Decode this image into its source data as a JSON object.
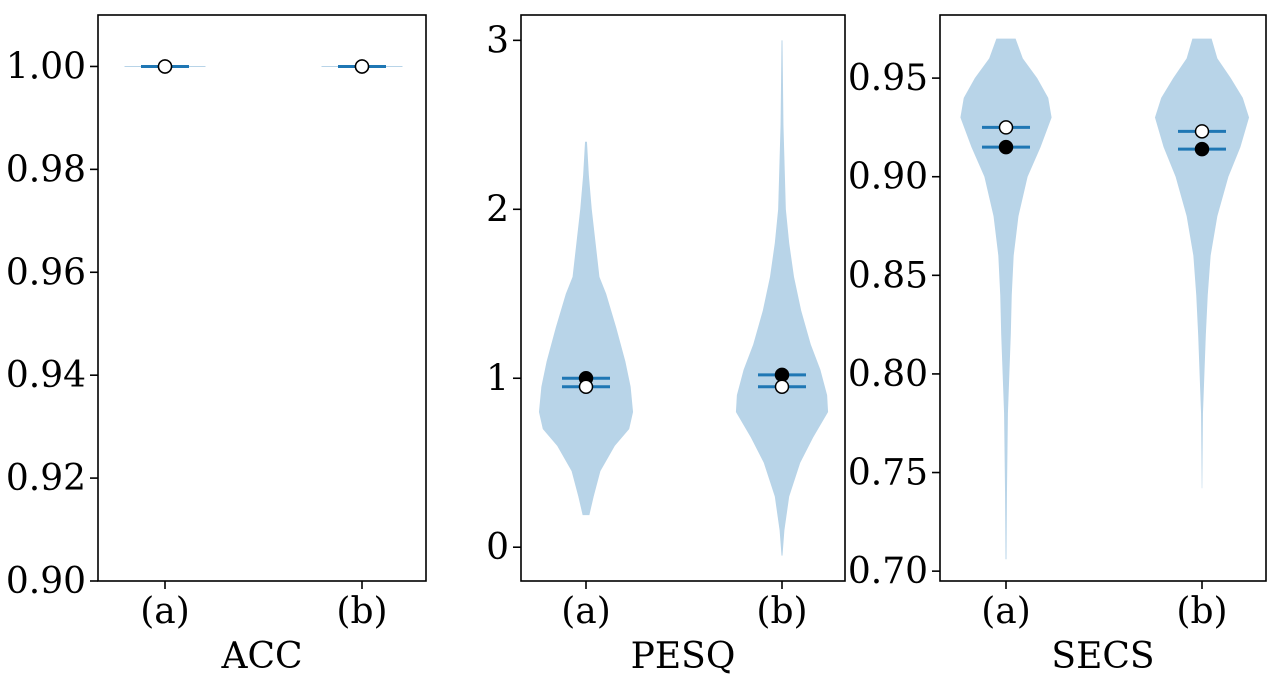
{
  "chart_data": [
    {
      "type": "violin",
      "xlabel": "ACC",
      "categories": [
        "(a)",
        "(b)"
      ],
      "ylim": [
        0.9,
        1.01
      ],
      "yticks": [
        0.9,
        0.92,
        0.94,
        0.96,
        0.98,
        1.0
      ],
      "ytick_labels": [
        "0.90",
        "0.92",
        "0.94",
        "0.96",
        "0.98",
        "1.00"
      ],
      "violins": [
        {
          "category": "(a)",
          "profile": [
            [
              1.0,
              0.45
            ]
          ]
        },
        {
          "category": "(b)",
          "profile": [
            [
              1.0,
              0.45
            ]
          ]
        }
      ],
      "mean": [
        1.0,
        1.0
      ],
      "median": [
        1.0,
        1.0
      ]
    },
    {
      "type": "violin",
      "xlabel": "PESQ",
      "categories": [
        "(a)",
        "(b)"
      ],
      "ylim": [
        -0.2,
        3.15
      ],
      "yticks": [
        0,
        1,
        2,
        3
      ],
      "ytick_labels": [
        "0",
        "1",
        "2",
        "3"
      ],
      "violins": [
        {
          "category": "(a)",
          "profile": [
            [
              0.19,
              0.07
            ],
            [
              0.3,
              0.16
            ],
            [
              0.45,
              0.3
            ],
            [
              0.6,
              0.6
            ],
            [
              0.7,
              0.9
            ],
            [
              0.8,
              0.98
            ],
            [
              0.95,
              0.93
            ],
            [
              1.1,
              0.82
            ],
            [
              1.3,
              0.63
            ],
            [
              1.5,
              0.42
            ],
            [
              1.6,
              0.28
            ],
            [
              1.8,
              0.2
            ],
            [
              2.0,
              0.12
            ],
            [
              2.2,
              0.06
            ],
            [
              2.4,
              0.02
            ]
          ]
        },
        {
          "category": "(b)",
          "profile": [
            [
              -0.05,
              0.01
            ],
            [
              0.1,
              0.05
            ],
            [
              0.3,
              0.15
            ],
            [
              0.5,
              0.38
            ],
            [
              0.65,
              0.65
            ],
            [
              0.8,
              0.96
            ],
            [
              0.9,
              0.94
            ],
            [
              1.05,
              0.8
            ],
            [
              1.2,
              0.6
            ],
            [
              1.4,
              0.4
            ],
            [
              1.6,
              0.25
            ],
            [
              1.8,
              0.15
            ],
            [
              2.0,
              0.08
            ],
            [
              2.5,
              0.03
            ],
            [
              3.0,
              0.01
            ]
          ]
        }
      ],
      "mean": [
        1.0,
        1.02
      ],
      "median": [
        0.95,
        0.95
      ]
    },
    {
      "type": "violin",
      "xlabel": "SECS",
      "categories": [
        "(a)",
        "(b)"
      ],
      "ylim": [
        0.695,
        0.982
      ],
      "yticks": [
        0.7,
        0.75,
        0.8,
        0.85,
        0.9,
        0.95
      ],
      "ytick_labels": [
        "0.70",
        "0.75",
        "0.80",
        "0.85",
        "0.90",
        "0.95"
      ],
      "violins": [
        {
          "category": "(a)",
          "profile": [
            [
              0.706,
              0.01
            ],
            [
              0.74,
              0.02
            ],
            [
              0.78,
              0.04
            ],
            [
              0.8,
              0.07
            ],
            [
              0.82,
              0.1
            ],
            [
              0.84,
              0.12
            ],
            [
              0.86,
              0.16
            ],
            [
              0.88,
              0.26
            ],
            [
              0.9,
              0.45
            ],
            [
              0.915,
              0.72
            ],
            [
              0.93,
              0.95
            ],
            [
              0.94,
              0.88
            ],
            [
              0.95,
              0.65
            ],
            [
              0.96,
              0.35
            ],
            [
              0.97,
              0.2
            ]
          ]
        },
        {
          "category": "(b)",
          "profile": [
            [
              0.742,
              0.005
            ],
            [
              0.78,
              0.02
            ],
            [
              0.8,
              0.05
            ],
            [
              0.82,
              0.08
            ],
            [
              0.84,
              0.12
            ],
            [
              0.86,
              0.18
            ],
            [
              0.88,
              0.32
            ],
            [
              0.9,
              0.55
            ],
            [
              0.915,
              0.8
            ],
            [
              0.93,
              0.98
            ],
            [
              0.94,
              0.85
            ],
            [
              0.95,
              0.6
            ],
            [
              0.96,
              0.32
            ],
            [
              0.97,
              0.2
            ]
          ]
        }
      ],
      "mean": [
        0.915,
        0.914
      ],
      "median": [
        0.925,
        0.923
      ]
    }
  ],
  "colors": {
    "violin_fill": "#b8d4e8",
    "stat_line": "#1f77b4",
    "mean_marker": "#000000",
    "median_marker": "#ffffff"
  }
}
